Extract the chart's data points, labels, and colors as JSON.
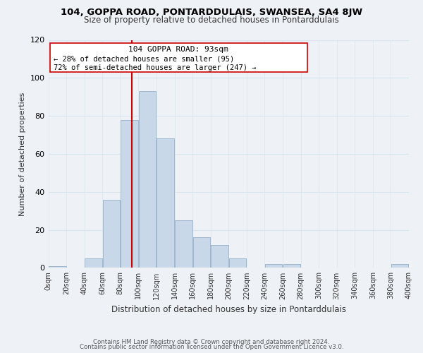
{
  "title": "104, GOPPA ROAD, PONTARDDULAIS, SWANSEA, SA4 8JW",
  "subtitle": "Size of property relative to detached houses in Pontarddulais",
  "xlabel": "Distribution of detached houses by size in Pontarddulais",
  "ylabel": "Number of detached properties",
  "bar_color": "#c8d8e8",
  "bar_edge_color": "#a0b8d0",
  "bin_edges": [
    0,
    20,
    40,
    60,
    80,
    100,
    120,
    140,
    160,
    180,
    200,
    220,
    240,
    260,
    280,
    300,
    320,
    340,
    360,
    380,
    400
  ],
  "bar_heights": [
    1,
    0,
    5,
    36,
    78,
    93,
    68,
    25,
    16,
    12,
    5,
    0,
    2,
    2,
    0,
    0,
    0,
    0,
    0,
    2
  ],
  "xlim": [
    0,
    400
  ],
  "ylim": [
    0,
    120
  ],
  "yticks": [
    0,
    20,
    40,
    60,
    80,
    100,
    120
  ],
  "xtick_labels": [
    "0sqm",
    "20sqm",
    "40sqm",
    "60sqm",
    "80sqm",
    "100sqm",
    "120sqm",
    "140sqm",
    "160sqm",
    "180sqm",
    "200sqm",
    "220sqm",
    "240sqm",
    "260sqm",
    "280sqm",
    "300sqm",
    "320sqm",
    "340sqm",
    "360sqm",
    "380sqm",
    "400sqm"
  ],
  "property_size": 93,
  "property_line_color": "#cc0000",
  "annotation_title": "104 GOPPA ROAD: 93sqm",
  "annotation_line1": "← 28% of detached houses are smaller (95)",
  "annotation_line2": "72% of semi-detached houses are larger (247) →",
  "grid_color": "#d8e4ee",
  "background_color": "#eef2f7",
  "plot_bg_color": "#eef2f7",
  "footer_line1": "Contains HM Land Registry data © Crown copyright and database right 2024.",
  "footer_line2": "Contains public sector information licensed under the Open Government Licence v3.0."
}
